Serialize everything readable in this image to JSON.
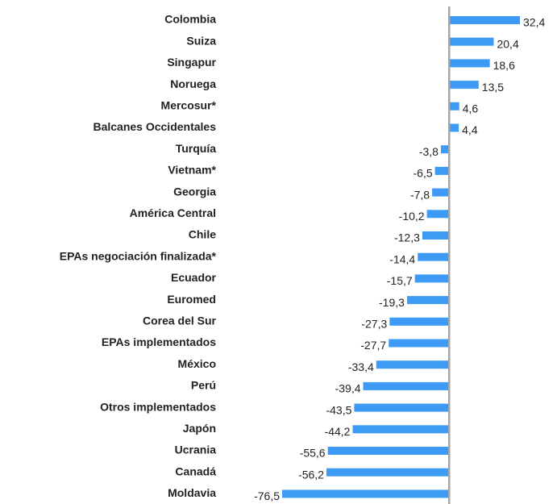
{
  "chart_data": {
    "type": "bar",
    "orientation": "horizontal",
    "color": "#3d9bf5",
    "categories": [
      "Colombia",
      "Suiza",
      "Singapur",
      "Noruega",
      "Mercosur*",
      "Balcanes Occidentales",
      "Turquía",
      "Vietnam*",
      "Georgia",
      "América Central",
      "Chile",
      "EPAs negociación finalizada*",
      "Ecuador",
      "Euromed",
      "Corea del Sur",
      "EPAs implementados",
      "México",
      "Perú",
      "Otros implementados",
      "Japón",
      "Ucrania",
      "Canadá",
      "Moldavia"
    ],
    "values": [
      32.4,
      20.4,
      18.6,
      13.5,
      4.6,
      4.4,
      -3.8,
      -6.5,
      -7.8,
      -10.2,
      -12.3,
      -14.4,
      -15.7,
      -19.3,
      -27.3,
      -27.7,
      -33.4,
      -39.4,
      -43.5,
      -44.2,
      -55.6,
      -56.2,
      -76.5
    ],
    "value_labels": [
      "32,4",
      "20,4",
      "18,6",
      "13,5",
      "4,6",
      "4,4",
      "-3,8",
      "-6,5",
      "-7,8",
      "-10,2",
      "-12,3",
      "-14,4",
      "-15,7",
      "-19,3",
      "-27,3",
      "-27,7",
      "-33,4",
      "-39,4",
      "-43,5",
      "-44,2",
      "-55,6",
      "-56,2",
      "-76,5"
    ]
  }
}
